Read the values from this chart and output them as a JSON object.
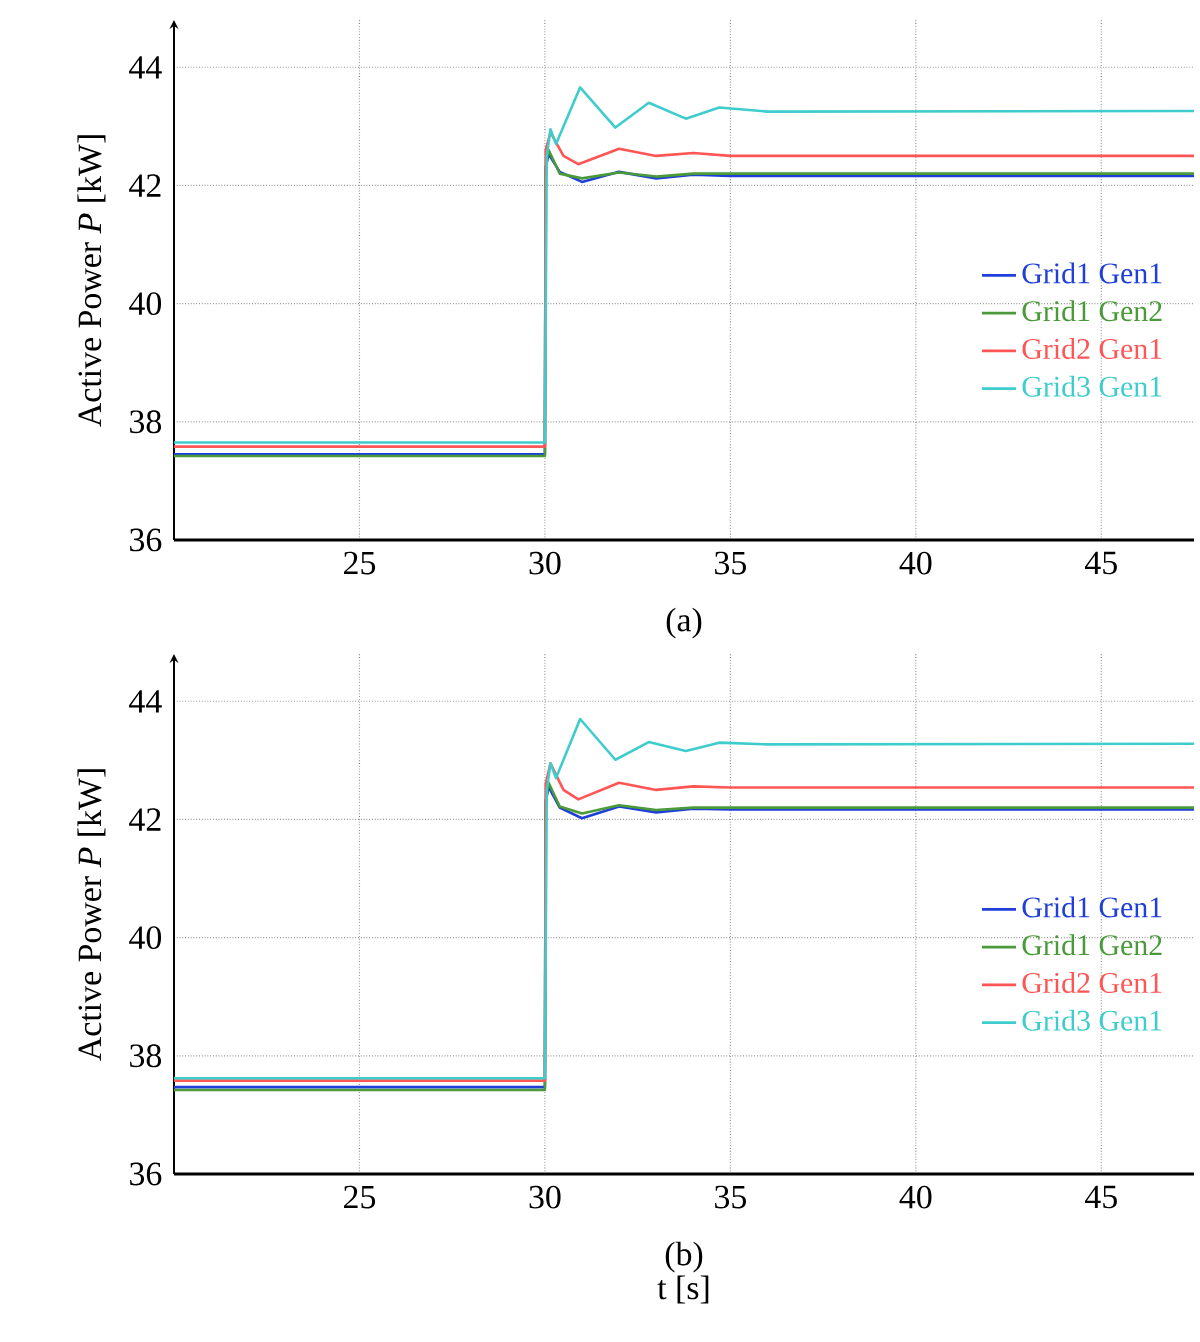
{
  "chart_data": [
    {
      "type": "line",
      "ylabel": "Active Power *P* [kW]",
      "annotations": [
        "(a)"
      ],
      "xlim": [
        20,
        47.5
      ],
      "ylim": [
        36,
        44.8
      ],
      "xticks": [
        25,
        30,
        35,
        40,
        45
      ],
      "yticks": [
        36,
        38,
        40,
        42,
        44
      ],
      "grid": true,
      "legend": "right",
      "series": [
        {
          "name": "Grid1 Gen1",
          "color": "#1f3fd8",
          "x": [
            20,
            30,
            30.02,
            30.1,
            30.4,
            31,
            32,
            33,
            34,
            35,
            47.5
          ],
          "values": [
            37.45,
            37.45,
            42.3,
            42.53,
            42.23,
            42.06,
            42.23,
            42.12,
            42.18,
            42.16,
            42.16
          ]
        },
        {
          "name": "Grid1 Gen2",
          "color": "#4a9a3a",
          "x": [
            20,
            30,
            30.02,
            30.1,
            30.4,
            31,
            32,
            33,
            34,
            35,
            47.5
          ],
          "values": [
            37.42,
            37.42,
            42.3,
            42.6,
            42.2,
            42.12,
            42.22,
            42.15,
            42.2,
            42.2,
            42.2
          ]
        },
        {
          "name": "Grid2 Gen1",
          "color": "#ff5555",
          "x": [
            20,
            30,
            30.02,
            30.15,
            30.5,
            30.9,
            32,
            33,
            34,
            35,
            47.5
          ],
          "values": [
            37.58,
            37.58,
            42.6,
            42.9,
            42.5,
            42.36,
            42.62,
            42.5,
            42.55,
            42.5,
            42.5
          ]
        },
        {
          "name": "Grid3 Gen1",
          "color": "#3ecccc",
          "x": [
            20,
            30,
            30.05,
            30.15,
            30.3,
            30.95,
            31.9,
            32.8,
            33.8,
            34.7,
            36,
            47.5
          ],
          "values": [
            37.65,
            37.65,
            42.5,
            42.95,
            42.7,
            43.66,
            42.98,
            43.4,
            43.13,
            43.32,
            43.25,
            43.26
          ]
        }
      ]
    },
    {
      "type": "line",
      "ylabel": "Active Power *P* [kW]",
      "xlabel": "t [s]",
      "annotations": [
        "(b)"
      ],
      "xlim": [
        20,
        47.5
      ],
      "ylim": [
        36,
        44.8
      ],
      "xticks": [
        25,
        30,
        35,
        40,
        45
      ],
      "yticks": [
        36,
        38,
        40,
        42,
        44
      ],
      "grid": true,
      "legend": "right",
      "series": [
        {
          "name": "Grid1 Gen1",
          "color": "#1f3fd8",
          "x": [
            20,
            30,
            30.02,
            30.1,
            30.4,
            31,
            32,
            33,
            34,
            35,
            47.5
          ],
          "values": [
            37.47,
            37.47,
            42.3,
            42.55,
            42.2,
            42.02,
            42.22,
            42.12,
            42.18,
            42.17,
            42.17
          ]
        },
        {
          "name": "Grid1 Gen2",
          "color": "#4a9a3a",
          "x": [
            20,
            30,
            30.02,
            30.1,
            30.4,
            31,
            32,
            33,
            34,
            35,
            47.5
          ],
          "values": [
            37.42,
            37.42,
            42.3,
            42.62,
            42.22,
            42.1,
            42.24,
            42.16,
            42.2,
            42.2,
            42.2
          ]
        },
        {
          "name": "Grid2 Gen1",
          "color": "#ff5555",
          "x": [
            20,
            30,
            30.02,
            30.15,
            30.5,
            30.9,
            32,
            33,
            34,
            35,
            47.5
          ],
          "values": [
            37.58,
            37.58,
            42.6,
            42.95,
            42.5,
            42.34,
            42.62,
            42.5,
            42.56,
            42.54,
            42.54
          ]
        },
        {
          "name": "Grid3 Gen1",
          "color": "#3ecccc",
          "x": [
            20,
            30,
            30.05,
            30.15,
            30.3,
            30.95,
            31.9,
            32.8,
            33.8,
            34.7,
            36,
            47.5
          ],
          "values": [
            37.62,
            37.62,
            42.5,
            42.95,
            42.7,
            43.7,
            43.01,
            43.31,
            43.16,
            43.3,
            43.27,
            43.28
          ]
        }
      ]
    }
  ]
}
